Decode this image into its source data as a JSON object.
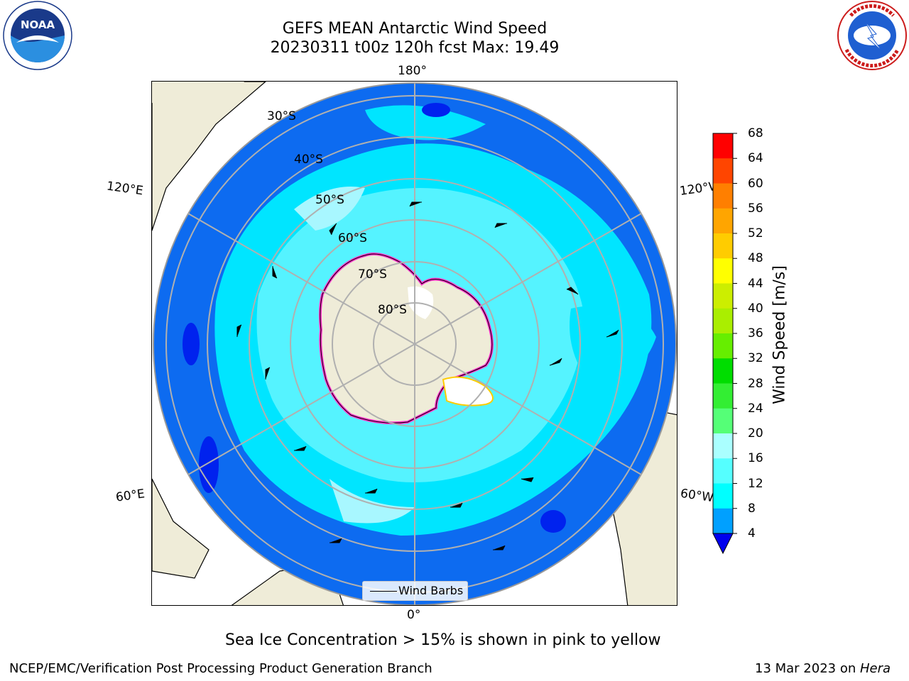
{
  "title_line1": "GEFS MEAN Antarctic Wind Speed",
  "title_line2": "20230311 t00z 120h fcst   Max: 19.49",
  "map": {
    "lat_labels": [
      "30°S",
      "40°S",
      "50°S",
      "60°S",
      "70°S",
      "80°S"
    ],
    "lon_labels": {
      "top": "180°",
      "bottom": "0°",
      "upper_left": "120°E",
      "upper_right": "120°W",
      "lower_left": "60°E",
      "lower_right": "60°W"
    },
    "legend_label": "Wind Barbs"
  },
  "colorbar": {
    "label": "Wind Speed [m/s]",
    "ticks": [
      "4",
      "8",
      "12",
      "16",
      "20",
      "24",
      "28",
      "32",
      "36",
      "40",
      "44",
      "48",
      "52",
      "56",
      "60",
      "64",
      "68"
    ],
    "colors": [
      "#0022ff",
      "#00a0ff",
      "#00ffff",
      "#55ffff",
      "#aaffff",
      "#55ff77",
      "#33ee33",
      "#00dd00",
      "#66ee00",
      "#aaee00",
      "#ccee00",
      "#ffff00",
      "#ffcc00",
      "#ffa500",
      "#ff7f00",
      "#ff4500",
      "#ff0000"
    ],
    "extend_color": "#0000ee"
  },
  "caption": "Sea Ice Concentration > 15% is shown in pink to yellow",
  "footer_left": "NCEP/EMC/Verification Post Processing Product Generation Branch",
  "footer_date": "13 Mar 2023 on ",
  "footer_machine": "Hera",
  "logos": {
    "noaa": "NOAA",
    "nws": "NATIONAL WEATHER SERVICE"
  },
  "colors": {
    "ocean_deep": "#0d6bf0",
    "ocean_mid": "#00e5ff",
    "ocean_light": "#a8f7ff",
    "land": "#efecd8",
    "sea_ice": "#ff33cc"
  }
}
